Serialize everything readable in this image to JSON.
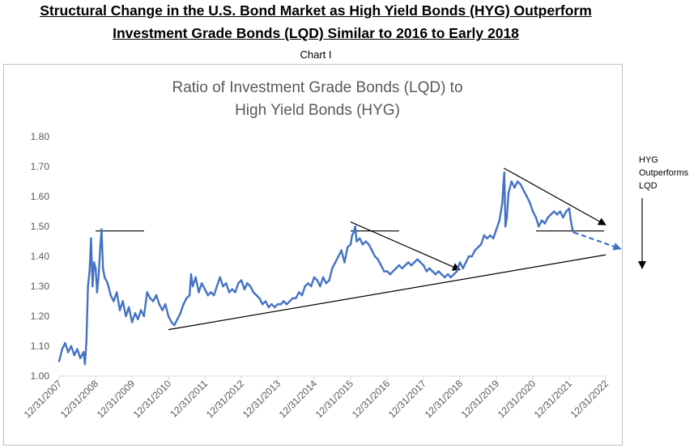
{
  "heading_line1": "Structural Change in the U.S. Bond Market as High Yield Bonds (HYG) Outperform",
  "heading_line2": "Investment Grade Bonds (LQD) Similar to 2016 to Early 2018",
  "subtitle": "Chart I",
  "side_note": [
    "HYG",
    "Outperforms",
    "LQD"
  ],
  "colors": {
    "series": "#4472C4",
    "axis": "#d9d9d9",
    "text": "#595959",
    "annotation": "#000000"
  },
  "chart_data": {
    "type": "line",
    "title": "Ratio of Investment Grade Bonds (LQD) to High Yield Bonds (HYG)",
    "title_lines": [
      "Ratio of Investment Grade Bonds (LQD) to",
      "High Yield Bonds (HYG)"
    ],
    "xlabel": "",
    "ylabel": "",
    "ylim": [
      1.0,
      1.8
    ],
    "xlim": [
      "2007-12-31",
      "2022-12-31"
    ],
    "y_ticks": [
      "1.00",
      "1.10",
      "1.20",
      "1.30",
      "1.40",
      "1.50",
      "1.60",
      "1.70",
      "1.80"
    ],
    "x_ticks": [
      "12/31/2007",
      "12/31/2008",
      "12/31/2009",
      "12/31/2010",
      "12/31/2011",
      "12/31/2012",
      "12/31/2013",
      "12/31/2014",
      "12/31/2015",
      "12/31/2016",
      "12/31/2017",
      "12/31/2018",
      "12/31/2019",
      "12/31/2020",
      "12/31/2021",
      "12/31/2022"
    ],
    "grid": false,
    "legend": "none",
    "series": [
      {
        "values": [
          [
            "2007-12-31",
            1.05
          ],
          [
            "2008-01-31",
            1.09
          ],
          [
            "2008-02-29",
            1.11
          ],
          [
            "2008-03-31",
            1.08
          ],
          [
            "2008-04-30",
            1.1
          ],
          [
            "2008-05-31",
            1.07
          ],
          [
            "2008-06-30",
            1.09
          ],
          [
            "2008-07-31",
            1.06
          ],
          [
            "2008-08-31",
            1.08
          ],
          [
            "2008-09-15",
            1.04
          ],
          [
            "2008-09-30",
            1.12
          ],
          [
            "2008-10-15",
            1.3
          ],
          [
            "2008-10-31",
            1.35
          ],
          [
            "2008-11-15",
            1.46
          ],
          [
            "2008-11-30",
            1.3
          ],
          [
            "2008-12-15",
            1.38
          ],
          [
            "2008-12-31",
            1.36
          ],
          [
            "2009-01-15",
            1.28
          ],
          [
            "2009-01-31",
            1.34
          ],
          [
            "2009-02-15",
            1.43
          ],
          [
            "2009-02-28",
            1.49
          ],
          [
            "2009-03-15",
            1.36
          ],
          [
            "2009-03-31",
            1.33
          ],
          [
            "2009-04-30",
            1.31
          ],
          [
            "2009-05-31",
            1.27
          ],
          [
            "2009-06-30",
            1.25
          ],
          [
            "2009-07-31",
            1.28
          ],
          [
            "2009-08-31",
            1.22
          ],
          [
            "2009-09-30",
            1.25
          ],
          [
            "2009-10-31",
            1.2
          ],
          [
            "2009-11-30",
            1.23
          ],
          [
            "2009-12-31",
            1.18
          ],
          [
            "2010-01-31",
            1.21
          ],
          [
            "2010-02-28",
            1.19
          ],
          [
            "2010-03-31",
            1.22
          ],
          [
            "2010-04-30",
            1.2
          ],
          [
            "2010-05-31",
            1.28
          ],
          [
            "2010-06-30",
            1.26
          ],
          [
            "2010-07-31",
            1.25
          ],
          [
            "2010-08-31",
            1.27
          ],
          [
            "2010-09-30",
            1.24
          ],
          [
            "2010-10-31",
            1.22
          ],
          [
            "2010-11-30",
            1.24
          ],
          [
            "2010-12-31",
            1.2
          ],
          [
            "2011-01-31",
            1.18
          ],
          [
            "2011-02-28",
            1.17
          ],
          [
            "2011-03-31",
            1.19
          ],
          [
            "2011-04-30",
            1.21
          ],
          [
            "2011-05-31",
            1.24
          ],
          [
            "2011-06-30",
            1.26
          ],
          [
            "2011-07-31",
            1.27
          ],
          [
            "2011-08-15",
            1.34
          ],
          [
            "2011-08-31",
            1.3
          ],
          [
            "2011-09-30",
            1.33
          ],
          [
            "2011-10-31",
            1.28
          ],
          [
            "2011-11-30",
            1.31
          ],
          [
            "2011-12-31",
            1.29
          ],
          [
            "2012-01-31",
            1.27
          ],
          [
            "2012-02-29",
            1.28
          ],
          [
            "2012-03-31",
            1.27
          ],
          [
            "2012-04-30",
            1.3
          ],
          [
            "2012-05-31",
            1.33
          ],
          [
            "2012-06-30",
            1.3
          ],
          [
            "2012-07-31",
            1.31
          ],
          [
            "2012-08-31",
            1.28
          ],
          [
            "2012-09-30",
            1.29
          ],
          [
            "2012-10-31",
            1.28
          ],
          [
            "2012-11-30",
            1.31
          ],
          [
            "2012-12-31",
            1.32
          ],
          [
            "2013-01-31",
            1.29
          ],
          [
            "2013-02-28",
            1.31
          ],
          [
            "2013-03-31",
            1.3
          ],
          [
            "2013-04-30",
            1.28
          ],
          [
            "2013-05-31",
            1.27
          ],
          [
            "2013-06-30",
            1.26
          ],
          [
            "2013-07-31",
            1.24
          ],
          [
            "2013-08-31",
            1.25
          ],
          [
            "2013-09-30",
            1.23
          ],
          [
            "2013-10-31",
            1.24
          ],
          [
            "2013-11-30",
            1.23
          ],
          [
            "2013-12-31",
            1.24
          ],
          [
            "2014-01-31",
            1.24
          ],
          [
            "2014-02-28",
            1.25
          ],
          [
            "2014-03-31",
            1.24
          ],
          [
            "2014-04-30",
            1.25
          ],
          [
            "2014-05-31",
            1.26
          ],
          [
            "2014-06-30",
            1.26
          ],
          [
            "2014-07-31",
            1.28
          ],
          [
            "2014-08-31",
            1.27
          ],
          [
            "2014-09-30",
            1.3
          ],
          [
            "2014-10-31",
            1.31
          ],
          [
            "2014-11-30",
            1.3
          ],
          [
            "2014-12-31",
            1.33
          ],
          [
            "2015-01-31",
            1.32
          ],
          [
            "2015-02-28",
            1.3
          ],
          [
            "2015-03-31",
            1.33
          ],
          [
            "2015-04-30",
            1.31
          ],
          [
            "2015-05-31",
            1.32
          ],
          [
            "2015-06-30",
            1.36
          ],
          [
            "2015-07-31",
            1.38
          ],
          [
            "2015-08-31",
            1.4
          ],
          [
            "2015-09-30",
            1.42
          ],
          [
            "2015-10-31",
            1.38
          ],
          [
            "2015-11-30",
            1.43
          ],
          [
            "2015-12-31",
            1.44
          ],
          [
            "2016-01-15",
            1.47
          ],
          [
            "2016-01-31",
            1.48
          ],
          [
            "2016-02-15",
            1.5
          ],
          [
            "2016-02-29",
            1.45
          ],
          [
            "2016-03-31",
            1.46
          ],
          [
            "2016-04-30",
            1.44
          ],
          [
            "2016-05-31",
            1.45
          ],
          [
            "2016-06-30",
            1.44
          ],
          [
            "2016-07-31",
            1.42
          ],
          [
            "2016-08-31",
            1.4
          ],
          [
            "2016-09-30",
            1.39
          ],
          [
            "2016-10-31",
            1.37
          ],
          [
            "2016-11-30",
            1.35
          ],
          [
            "2016-12-31",
            1.35
          ],
          [
            "2017-01-31",
            1.34
          ],
          [
            "2017-02-28",
            1.35
          ],
          [
            "2017-03-31",
            1.36
          ],
          [
            "2017-04-30",
            1.37
          ],
          [
            "2017-05-31",
            1.36
          ],
          [
            "2017-06-30",
            1.37
          ],
          [
            "2017-07-31",
            1.38
          ],
          [
            "2017-08-31",
            1.37
          ],
          [
            "2017-09-30",
            1.38
          ],
          [
            "2017-10-31",
            1.39
          ],
          [
            "2017-11-30",
            1.38
          ],
          [
            "2017-12-31",
            1.37
          ],
          [
            "2018-01-31",
            1.35
          ],
          [
            "2018-02-28",
            1.36
          ],
          [
            "2018-03-31",
            1.35
          ],
          [
            "2018-04-30",
            1.34
          ],
          [
            "2018-05-31",
            1.35
          ],
          [
            "2018-06-30",
            1.34
          ],
          [
            "2018-07-31",
            1.33
          ],
          [
            "2018-08-31",
            1.34
          ],
          [
            "2018-09-30",
            1.33
          ],
          [
            "2018-10-31",
            1.34
          ],
          [
            "2018-11-30",
            1.35
          ],
          [
            "2018-12-31",
            1.38
          ],
          [
            "2019-01-31",
            1.36
          ],
          [
            "2019-02-28",
            1.38
          ],
          [
            "2019-03-31",
            1.4
          ],
          [
            "2019-04-30",
            1.4
          ],
          [
            "2019-05-31",
            1.42
          ],
          [
            "2019-06-30",
            1.43
          ],
          [
            "2019-07-31",
            1.44
          ],
          [
            "2019-08-31",
            1.47
          ],
          [
            "2019-09-30",
            1.46
          ],
          [
            "2019-10-31",
            1.47
          ],
          [
            "2019-11-30",
            1.46
          ],
          [
            "2019-12-31",
            1.49
          ],
          [
            "2020-01-31",
            1.52
          ],
          [
            "2020-02-15",
            1.55
          ],
          [
            "2020-02-29",
            1.58
          ],
          [
            "2020-03-10",
            1.64
          ],
          [
            "2020-03-20",
            1.68
          ],
          [
            "2020-03-31",
            1.5
          ],
          [
            "2020-04-15",
            1.53
          ],
          [
            "2020-04-30",
            1.61
          ],
          [
            "2020-05-31",
            1.65
          ],
          [
            "2020-06-30",
            1.63
          ],
          [
            "2020-07-31",
            1.65
          ],
          [
            "2020-08-31",
            1.64
          ],
          [
            "2020-09-30",
            1.62
          ],
          [
            "2020-10-31",
            1.6
          ],
          [
            "2020-11-30",
            1.58
          ],
          [
            "2020-12-31",
            1.55
          ],
          [
            "2021-01-31",
            1.53
          ],
          [
            "2021-02-28",
            1.5
          ],
          [
            "2021-03-31",
            1.52
          ],
          [
            "2021-04-30",
            1.51
          ],
          [
            "2021-05-31",
            1.53
          ],
          [
            "2021-06-30",
            1.54
          ],
          [
            "2021-07-31",
            1.55
          ],
          [
            "2021-08-31",
            1.54
          ],
          [
            "2021-09-30",
            1.55
          ],
          [
            "2021-10-31",
            1.53
          ],
          [
            "2021-11-30",
            1.55
          ],
          [
            "2021-12-31",
            1.56
          ],
          [
            "2022-01-15",
            1.52
          ],
          [
            "2022-01-31",
            1.49
          ],
          [
            "2022-02-15",
            1.48
          ]
        ]
      }
    ],
    "annotations": {
      "support_line": [
        [
          "2010-12-31",
          1.155
        ],
        [
          "2022-12-31",
          1.405
        ]
      ],
      "resistance_line_2016": [
        [
          "2015-12-31",
          1.515
        ],
        [
          "2018-12-31",
          1.355
        ]
      ],
      "resistance_line_2020": [
        [
          "2020-03-15",
          1.695
        ],
        [
          "2022-12-31",
          1.505
        ]
      ],
      "horizontal_2008": [
        [
          "2008-12-31",
          1.485
        ],
        [
          "2010-04-30",
          1.485
        ]
      ],
      "horizontal_2016": [
        [
          "2015-12-31",
          1.485
        ],
        [
          "2017-04-30",
          1.485
        ]
      ],
      "horizontal_2021": [
        [
          "2021-01-31",
          1.485
        ],
        [
          "2022-12-15",
          1.485
        ]
      ],
      "projection": [
        [
          "2022-02-15",
          1.48
        ],
        [
          "2023-05-31",
          1.425
        ]
      ]
    }
  }
}
